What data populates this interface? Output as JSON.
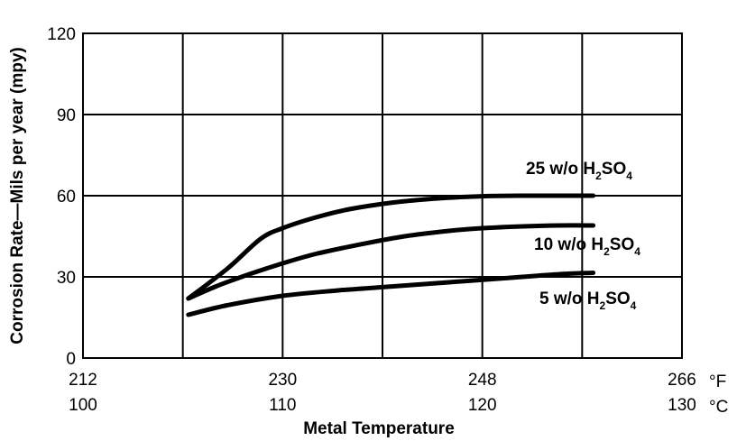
{
  "chart_data": {
    "type": "line",
    "ylabel": "Corrosion Rate—Mils per year (mpy)",
    "xlabel": "Metal Temperature",
    "ylim": [
      0,
      120
    ],
    "yticks": [
      "0",
      "30",
      "60",
      "90",
      "120"
    ],
    "xaxis_f": {
      "unit": "°F",
      "ticks": [
        "212",
        "230",
        "248",
        "266"
      ],
      "range": [
        212,
        266
      ]
    },
    "xaxis_c": {
      "unit": "°C",
      "ticks": [
        "100",
        "110",
        "120",
        "130"
      ]
    },
    "grid": true,
    "series": [
      {
        "label": {
          "prefix": "25 w/o H",
          "sub1": "2",
          "mid": "SO",
          "sub2": "4"
        },
        "x": [
          221.5,
          225,
          228,
          230,
          233,
          236,
          240,
          244,
          248,
          252,
          255,
          258
        ],
        "y": [
          22,
          33,
          44,
          48,
          52,
          55,
          57.5,
          59,
          59.8,
          60,
          60,
          60
        ]
      },
      {
        "label": {
          "prefix": "10 w/o H",
          "sub1": "2",
          "mid": "SO",
          "sub2": "4"
        },
        "x": [
          221.5,
          224,
          227,
          230,
          233,
          237,
          241,
          245,
          248,
          252,
          255,
          258
        ],
        "y": [
          22,
          26.5,
          31,
          35,
          38.5,
          42,
          45,
          47,
          48,
          48.7,
          49,
          49
        ]
      },
      {
        "label": {
          "prefix": "5 w/o H",
          "sub1": "2",
          "mid": "SO",
          "sub2": "4"
        },
        "x": [
          221.5,
          225,
          230,
          235,
          240,
          245,
          250,
          255,
          258
        ],
        "y": [
          16,
          19.5,
          23,
          25,
          26.5,
          28,
          29.5,
          31,
          31.5
        ]
      }
    ]
  }
}
